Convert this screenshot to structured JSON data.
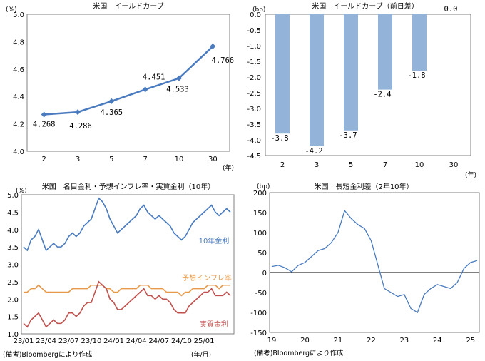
{
  "chart_data": [
    {
      "type": "line",
      "title": "米国　イールドカーブ",
      "yunit": "(%)",
      "xunit": "(年)",
      "categories": [
        "2",
        "3",
        "5",
        "7",
        "10",
        "30"
      ],
      "values": [
        4.268,
        4.286,
        4.365,
        4.451,
        4.533,
        4.766
      ],
      "value_labels": [
        "4.268",
        "4.286",
        "4.365",
        "4.451",
        "4.533",
        "4.766"
      ],
      "ylim": [
        4.0,
        5.0
      ],
      "yticks": [
        "4.0",
        "4.2",
        "4.4",
        "4.6",
        "4.8",
        "5.0"
      ],
      "color": "#4a7bbf"
    },
    {
      "type": "bar",
      "title": "米国　イールドカーブ（前日差）",
      "yunit": "(bp)",
      "xunit": "(年)",
      "categories": [
        "2",
        "3",
        "5",
        "7",
        "10",
        "30"
      ],
      "values": [
        -3.8,
        -4.2,
        -3.7,
        -2.4,
        -1.8,
        0.0
      ],
      "value_labels": [
        "-3.8",
        "-4.2",
        "-3.7",
        "-2.4",
        "-1.8",
        "0.0"
      ],
      "ylim": [
        -4.5,
        0.0
      ],
      "yticks": [
        "0.0",
        "-0.5",
        "-1.0",
        "-1.5",
        "-2.0",
        "-2.5",
        "-3.0",
        "-3.5",
        "-4.0",
        "-4.5"
      ],
      "color": "#94b3d9"
    },
    {
      "type": "line",
      "title": "米国　名目金利・予想インフレ率・実質金利（10年）",
      "yunit": "(%)",
      "xunit": "(年/月)",
      "categories": [
        "23/01",
        "23/04",
        "23/07",
        "23/10",
        "24/01",
        "24/04",
        "24/07",
        "24/10",
        "25/01"
      ],
      "ylim": [
        1.0,
        5.0
      ],
      "yticks": [
        "1.0",
        "1.5",
        "2.0",
        "2.5",
        "3.0",
        "3.5",
        "4.0",
        "4.5",
        "5.0"
      ],
      "series": [
        {
          "name": "10年金利",
          "color": "#4a7bbf",
          "x": [
            0,
            0.5,
            1,
            1.5,
            2,
            2.5,
            3,
            3.5,
            4,
            4.5,
            5,
            5.5,
            6,
            6.5,
            7,
            7.5,
            8,
            8.5,
            9,
            9.5,
            10,
            10.5,
            11,
            11.5,
            12,
            12.5,
            13,
            13.5,
            14,
            14.5,
            15,
            15.5,
            16,
            16.5,
            17,
            17.5,
            18,
            18.5,
            19,
            19.5,
            20,
            20.5,
            21,
            21.5,
            22,
            22.5,
            23,
            23.5,
            24,
            24.5,
            25,
            25.5,
            26,
            26.5,
            27,
            27.5
          ],
          "y": [
            3.5,
            3.4,
            3.7,
            3.8,
            4.0,
            3.7,
            3.4,
            3.5,
            3.6,
            3.5,
            3.5,
            3.6,
            3.8,
            3.9,
            3.8,
            3.9,
            4.1,
            4.2,
            4.3,
            4.6,
            4.9,
            4.8,
            4.6,
            4.3,
            4.1,
            3.9,
            4.0,
            4.1,
            4.2,
            4.3,
            4.4,
            4.6,
            4.7,
            4.5,
            4.4,
            4.3,
            4.4,
            4.3,
            4.2,
            4.1,
            3.9,
            3.8,
            3.7,
            3.8,
            4.0,
            4.2,
            4.3,
            4.4,
            4.5,
            4.6,
            4.7,
            4.5,
            4.4,
            4.5,
            4.6,
            4.5
          ]
        },
        {
          "name": "予想インフレ率",
          "color": "#e89a4b",
          "x": [
            0,
            0.5,
            1,
            1.5,
            2,
            2.5,
            3,
            3.5,
            4,
            4.5,
            5,
            5.5,
            6,
            6.5,
            7,
            7.5,
            8,
            8.5,
            9,
            9.5,
            10,
            10.5,
            11,
            11.5,
            12,
            12.5,
            13,
            13.5,
            14,
            14.5,
            15,
            15.5,
            16,
            16.5,
            17,
            17.5,
            18,
            18.5,
            19,
            19.5,
            20,
            20.5,
            21,
            21.5,
            22,
            22.5,
            23,
            23.5,
            24,
            24.5,
            25,
            25.5,
            26,
            26.5,
            27,
            27.5
          ],
          "y": [
            2.2,
            2.2,
            2.3,
            2.3,
            2.4,
            2.3,
            2.2,
            2.2,
            2.2,
            2.2,
            2.2,
            2.2,
            2.2,
            2.3,
            2.3,
            2.3,
            2.3,
            2.3,
            2.4,
            2.4,
            2.4,
            2.4,
            2.3,
            2.3,
            2.2,
            2.2,
            2.3,
            2.3,
            2.3,
            2.3,
            2.3,
            2.4,
            2.4,
            2.4,
            2.3,
            2.3,
            2.3,
            2.3,
            2.2,
            2.2,
            2.2,
            2.2,
            2.1,
            2.2,
            2.2,
            2.3,
            2.3,
            2.3,
            2.3,
            2.4,
            2.4,
            2.4,
            2.3,
            2.4,
            2.4,
            2.4
          ]
        },
        {
          "name": "実質金利",
          "color": "#c0504d",
          "x": [
            0,
            0.5,
            1,
            1.5,
            2,
            2.5,
            3,
            3.5,
            4,
            4.5,
            5,
            5.5,
            6,
            6.5,
            7,
            7.5,
            8,
            8.5,
            9,
            9.5,
            10,
            10.5,
            11,
            11.5,
            12,
            12.5,
            13,
            13.5,
            14,
            14.5,
            15,
            15.5,
            16,
            16.5,
            17,
            17.5,
            18,
            18.5,
            19,
            19.5,
            20,
            20.5,
            21,
            21.5,
            22,
            22.5,
            23,
            23.5,
            24,
            24.5,
            25,
            25.5,
            26,
            26.5,
            27,
            27.5
          ],
          "y": [
            1.3,
            1.2,
            1.4,
            1.5,
            1.6,
            1.4,
            1.2,
            1.3,
            1.4,
            1.3,
            1.3,
            1.4,
            1.6,
            1.6,
            1.5,
            1.6,
            1.8,
            1.9,
            1.9,
            2.2,
            2.5,
            2.4,
            2.3,
            2.0,
            1.9,
            1.7,
            1.7,
            1.8,
            1.9,
            2.0,
            2.1,
            2.2,
            2.3,
            2.1,
            2.1,
            2.0,
            2.1,
            2.0,
            2.0,
            1.9,
            1.7,
            1.6,
            1.6,
            1.6,
            1.8,
            1.9,
            2.0,
            2.1,
            2.2,
            2.2,
            2.3,
            2.1,
            2.1,
            2.1,
            2.2,
            2.1
          ]
        }
      ]
    },
    {
      "type": "line",
      "title": "米国　長短金利差（2年10年）",
      "yunit": "(bp)",
      "categories": [
        "19",
        "20",
        "21",
        "22",
        "23",
        "24",
        "25"
      ],
      "ylim": [
        -150,
        200
      ],
      "yticks": [
        "200",
        "150",
        "100",
        "50",
        "0",
        "-50",
        "-100",
        "-150"
      ],
      "series": [
        {
          "name": "",
          "color": "#4a7bbf",
          "x": [
            2019.0,
            2019.2,
            2019.4,
            2019.6,
            2019.8,
            2020.0,
            2020.2,
            2020.4,
            2020.6,
            2020.8,
            2021.0,
            2021.2,
            2021.4,
            2021.6,
            2021.8,
            2022.0,
            2022.2,
            2022.4,
            2022.6,
            2022.8,
            2023.0,
            2023.2,
            2023.4,
            2023.6,
            2023.8,
            2024.0,
            2024.2,
            2024.4,
            2024.6,
            2024.8,
            2025.0,
            2025.2
          ],
          "y": [
            15,
            18,
            12,
            2,
            18,
            25,
            40,
            55,
            60,
            75,
            100,
            155,
            135,
            120,
            110,
            80,
            20,
            -40,
            -50,
            -60,
            -55,
            -90,
            -100,
            -55,
            -40,
            -30,
            -35,
            -40,
            -25,
            10,
            25,
            30
          ]
        }
      ]
    }
  ],
  "source_left": "(備考)Bloombergにより作成",
  "source_right": "(備考)Bloombergにより作成"
}
